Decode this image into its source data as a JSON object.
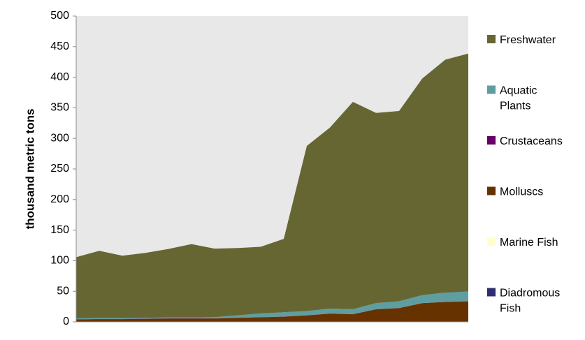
{
  "chart_data": {
    "type": "area",
    "stacked": true,
    "ylabel": "thousand metric tons",
    "xlabel": "",
    "ylim": [
      0,
      500
    ],
    "yticks": [
      0,
      50,
      100,
      150,
      200,
      250,
      300,
      350,
      400,
      450,
      500
    ],
    "x": [
      1,
      2,
      3,
      4,
      5,
      6,
      7,
      8,
      9,
      10,
      11,
      12,
      13,
      14,
      15,
      16,
      17,
      18
    ],
    "grid": false,
    "plot_background": "#e8e8e8",
    "legend_position": "right",
    "series": [
      {
        "name": "Diadromous Fish",
        "color": "#2e2e6e",
        "values": [
          0.3,
          0.3,
          0.3,
          0.3,
          0.3,
          0.3,
          0.3,
          0.3,
          0.3,
          0.3,
          0.3,
          0.3,
          0.3,
          0.3,
          0.3,
          0.3,
          0.3,
          0.3
        ]
      },
      {
        "name": "Marine Fish",
        "color": "#ffffcc",
        "values": [
          0.2,
          0.2,
          0.2,
          0.2,
          0.2,
          0.2,
          0.2,
          0.2,
          0.2,
          0.2,
          0.2,
          0.2,
          0.2,
          0.2,
          0.2,
          0.2,
          0.2,
          0.2
        ]
      },
      {
        "name": "Molluscs",
        "color": "#663300",
        "values": [
          3.5,
          4,
          4,
          4.5,
          5,
          5,
          5,
          6,
          7,
          8,
          10,
          13,
          12,
          20,
          22,
          30,
          32,
          33
        ]
      },
      {
        "name": "Crustaceans",
        "color": "#660066",
        "values": [
          0.2,
          0.2,
          0.2,
          0.2,
          0.2,
          0.2,
          0.2,
          0.2,
          0.2,
          0.2,
          0.2,
          0.2,
          0.2,
          0.2,
          0.2,
          0.2,
          0.2,
          0.2
        ]
      },
      {
        "name": "Aquatic Plants",
        "color": "#5f9ea0",
        "values": [
          1.5,
          1.5,
          1.5,
          1.5,
          1.5,
          1.5,
          2,
          4,
          6,
          7,
          7,
          8,
          8,
          10,
          11,
          13,
          15,
          16
        ]
      },
      {
        "name": "Freshwater",
        "color": "#666633",
        "values": [
          100,
          110,
          102,
          106,
          112,
          120,
          112,
          110,
          109,
          120,
          270,
          296,
          339,
          311,
          311,
          354,
          381,
          389
        ]
      }
    ]
  }
}
